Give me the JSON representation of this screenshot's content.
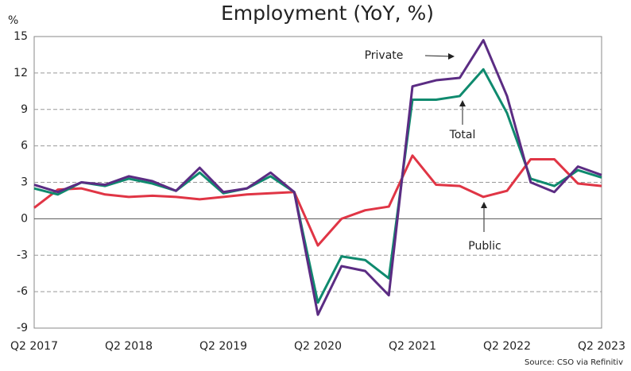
{
  "chart_data": {
    "type": "line",
    "title": "Employment (YoY, %)",
    "y_label": "%",
    "source": "Source: CSO via Refinitiv",
    "categories": [
      "Q2 2017",
      null,
      null,
      null,
      "Q2 2018",
      null,
      null,
      null,
      "Q2 2019",
      null,
      null,
      null,
      "Q2 2020",
      null,
      null,
      null,
      "Q2 2021",
      null,
      null,
      null,
      "Q2 2022",
      null,
      null,
      null,
      "Q2 2023"
    ],
    "series": [
      {
        "name": "Private",
        "color": "#5b2c83",
        "values": [
          2.8,
          2.2,
          3.0,
          2.8,
          3.5,
          3.1,
          2.3,
          4.2,
          2.2,
          2.5,
          3.8,
          2.2,
          -7.9,
          -3.9,
          -4.3,
          -6.3,
          10.9,
          11.4,
          11.6,
          14.7,
          10.1,
          3.0,
          2.2,
          4.3,
          3.6
        ]
      },
      {
        "name": "Total",
        "color": "#0f8a6e",
        "values": [
          2.5,
          2.0,
          3.0,
          2.7,
          3.3,
          2.9,
          2.3,
          3.8,
          2.1,
          2.5,
          3.5,
          2.2,
          -6.9,
          -3.1,
          -3.4,
          -4.9,
          9.8,
          9.8,
          10.1,
          12.3,
          8.7,
          3.3,
          2.7,
          4.0,
          3.4
        ]
      },
      {
        "name": "Public",
        "color": "#e03545",
        "values": [
          0.9,
          2.4,
          2.5,
          2.0,
          1.8,
          1.9,
          1.8,
          1.6,
          1.8,
          2.0,
          2.1,
          2.2,
          -2.2,
          0.0,
          0.7,
          1.0,
          5.2,
          2.8,
          2.7,
          1.8,
          2.3,
          4.9,
          4.9,
          2.9,
          2.7
        ]
      }
    ],
    "ylim": [
      -9,
      15
    ],
    "yticks": [
      -9,
      -6,
      -3,
      0,
      3,
      6,
      9,
      12,
      15
    ],
    "grid": true
  }
}
